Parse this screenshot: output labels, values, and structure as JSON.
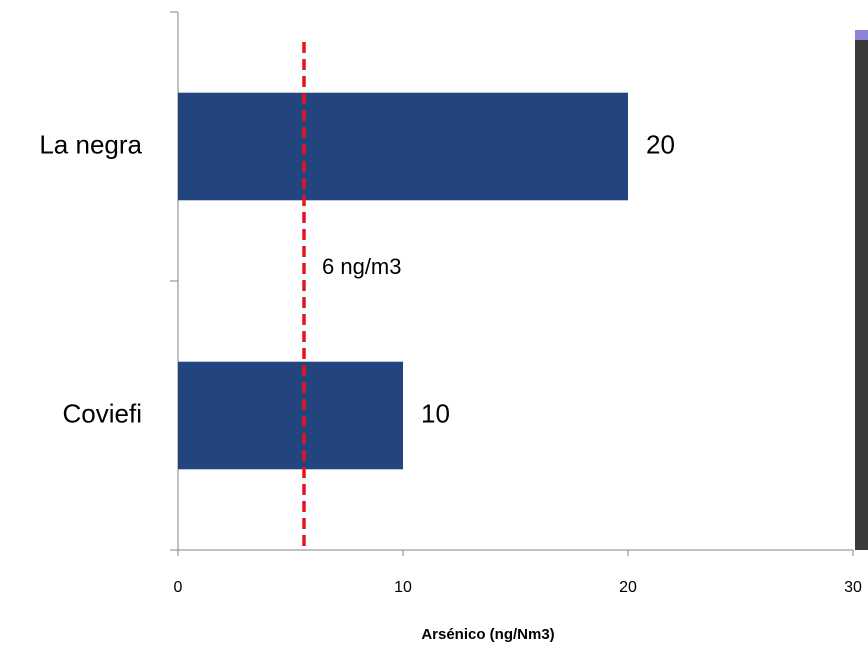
{
  "chart_data": {
    "type": "bar",
    "orientation": "horizontal",
    "x_label": "Arsénico (ng/Nm3)",
    "categories": [
      "La negra",
      "Coviefi"
    ],
    "values": [
      20,
      10
    ],
    "color": "#22457f",
    "xlim": [
      0,
      30
    ],
    "xticks": [
      0,
      10,
      20,
      30
    ],
    "reference_line": {
      "value": 5.6,
      "label": "6 ng/m3",
      "color": "#e8141c"
    }
  }
}
